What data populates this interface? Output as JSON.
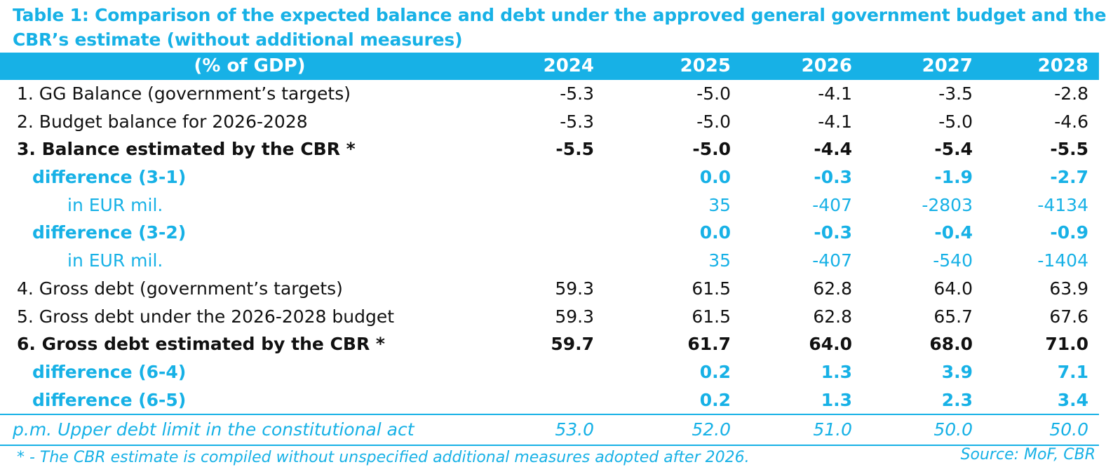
{
  "title": {
    "line1": "Table 1: Comparison of the expected balance and debt under the approved general government budget and the",
    "line2": "CBR’s estimate (without additional measures)"
  },
  "header": {
    "label": "(% of GDP)",
    "years": [
      "2024",
      "2025",
      "2026",
      "2027",
      "2028"
    ]
  },
  "rows": [
    {
      "label": "1. GG Balance (government’s targets)",
      "values": [
        "-5.3",
        "-5.0",
        "-4.1",
        "-3.5",
        "-2.8"
      ]
    },
    {
      "label": "2. Budget balance for 2026-2028",
      "values": [
        "-5.3",
        "-5.0",
        "-4.1",
        "-5.0",
        "-4.6"
      ]
    },
    {
      "label": "3. Balance estimated by the CBR *",
      "values": [
        "-5.5",
        "-5.0",
        "-4.4",
        "-5.4",
        "-5.5"
      ]
    },
    {
      "label": "difference (3-1)",
      "values": [
        "",
        "0.0",
        "-0.3",
        "-1.9",
        "-2.7"
      ]
    },
    {
      "label": "in EUR mil.",
      "values": [
        "",
        "35",
        "-407",
        "-2803",
        "-4134"
      ]
    },
    {
      "label": "difference (3-2)",
      "values": [
        "",
        "0.0",
        "-0.3",
        "-0.4",
        "-0.9"
      ]
    },
    {
      "label": "in EUR mil.",
      "values": [
        "",
        "35",
        "-407",
        "-540",
        "-1404"
      ]
    },
    {
      "label": "4. Gross debt (government’s targets)",
      "values": [
        "59.3",
        "61.5",
        "62.8",
        "64.0",
        "63.9"
      ]
    },
    {
      "label": "5. Gross debt under the 2026-2028 budget",
      "values": [
        "59.3",
        "61.5",
        "62.8",
        "65.7",
        "67.6"
      ]
    },
    {
      "label": "6. Gross debt estimated by the CBR *",
      "values": [
        "59.7",
        "61.7",
        "64.0",
        "68.0",
        "71.0"
      ]
    },
    {
      "label": "difference (6-4)",
      "values": [
        "",
        "0.2",
        "1.3",
        "3.9",
        "7.1"
      ]
    },
    {
      "label": "difference (6-5)",
      "values": [
        "",
        "0.2",
        "1.3",
        "2.3",
        "3.4"
      ]
    }
  ],
  "pm_row": {
    "label": "p.m. Upper debt limit in the constitutional act",
    "values": [
      "53.0",
      "52.0",
      "51.0",
      "50.0",
      "50.0"
    ]
  },
  "footnote": "* - The CBR estimate is compiled without unspecified additional measures adopted after 2026.",
  "source": "Source: MoF, CBR",
  "colors": {
    "accent": "#17b1e6",
    "text": "#111111",
    "header_text": "#ffffff"
  }
}
